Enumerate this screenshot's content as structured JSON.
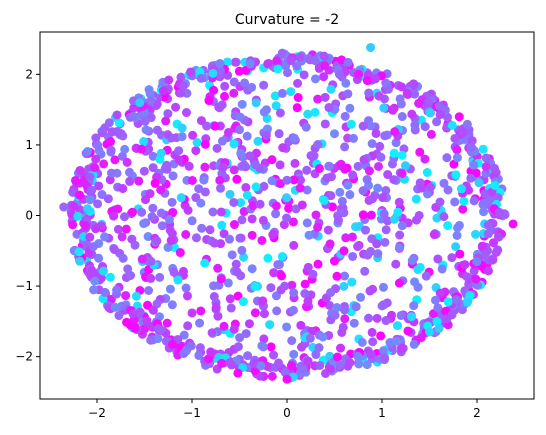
{
  "chart_data": {
    "type": "scatter",
    "title": "Curvature = -2",
    "xlabel": "",
    "ylabel": "",
    "xlim": [
      -2.6,
      2.6
    ],
    "ylim": [
      -2.6,
      2.6
    ],
    "xticks": [
      -2,
      -1,
      0,
      1,
      2
    ],
    "yticks": [
      -2,
      -1,
      0,
      1,
      2
    ],
    "xtick_labels": [
      "−2",
      "−1",
      "0",
      "1",
      "2"
    ],
    "ytick_labels": [
      "−2",
      "−1",
      "0",
      "1",
      "2"
    ],
    "grid": false,
    "colormap": "cool",
    "colors": {
      "cyan": "#00ffff",
      "magenta": "#ff00ff"
    },
    "distribution": {
      "shape": "disk",
      "center": [
        0,
        0
      ],
      "radius_x": 2.3,
      "radius_y": 2.3,
      "approx_point_count": 1500
    },
    "sample_points": [
      {
        "x": -2.35,
        "y": 0.12
      },
      {
        "x": 2.38,
        "y": -0.12
      },
      {
        "x": 0.88,
        "y": 2.38
      },
      {
        "x": -0.05,
        "y": 2.3
      },
      {
        "x": 0.0,
        "y": -2.32
      },
      {
        "x": -1.55,
        "y": 1.6
      },
      {
        "x": 1.6,
        "y": 1.55
      },
      {
        "x": -1.6,
        "y": -1.6
      },
      {
        "x": 1.6,
        "y": -1.6
      },
      {
        "x": 0.0,
        "y": 0.5
      },
      {
        "x": 0.6,
        "y": -0.5
      },
      {
        "x": -0.6,
        "y": 0.3
      }
    ]
  }
}
